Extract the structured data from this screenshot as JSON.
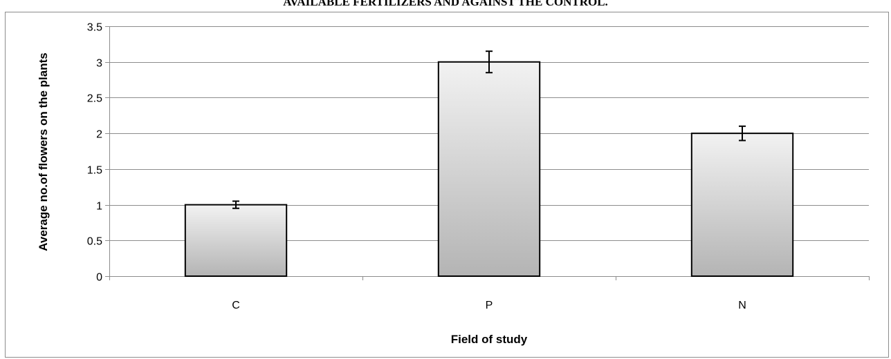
{
  "chart_data": {
    "type": "bar",
    "title": "AVAILABLE FERTILIZERS AND AGAINST THE CONTROL.",
    "xlabel": "Field of study",
    "ylabel": "Average no.of flowers on the plants",
    "categories": [
      "C",
      "P",
      "N"
    ],
    "values": [
      1.0,
      3.0,
      2.0
    ],
    "error_bars": [
      0.05,
      0.15,
      0.1
    ],
    "ylim": [
      0,
      3.5
    ],
    "yticks": [
      0,
      0.5,
      1,
      1.5,
      2,
      2.5,
      3,
      3.5
    ],
    "ytick_labels": [
      "0",
      "0.5",
      "1",
      "1.5",
      "2",
      "2.5",
      "3",
      "3.5"
    ],
    "grid": true,
    "legend": "none",
    "bar_gradient": [
      "#f2f2f2",
      "#b4b4b4"
    ],
    "bar_edge_color": "#000000"
  }
}
